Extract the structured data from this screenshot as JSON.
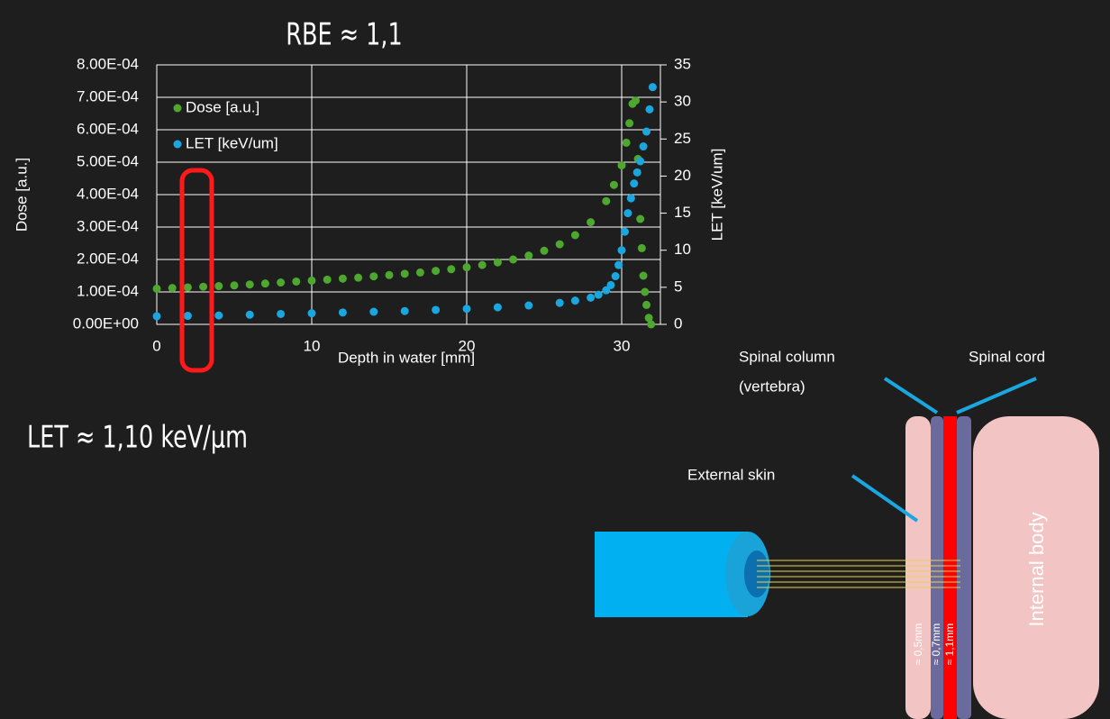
{
  "chart_data": {
    "type": "scatter",
    "title": "RBE ≈ 1,1",
    "xlabel": "Depth in water [mm]",
    "ylabel": "Dose [a.u.]",
    "y2label": "LET [keV/um]",
    "xlim": [
      0,
      32.5
    ],
    "xticks": [
      0,
      10,
      20,
      30
    ],
    "ylim": [
      0,
      0.0008
    ],
    "yticks": [
      {
        "value": 0,
        "label": "0.00E+00"
      },
      {
        "value": 0.0001,
        "label": "1.00E-04"
      },
      {
        "value": 0.0002,
        "label": "2.00E-04"
      },
      {
        "value": 0.0003,
        "label": "3.00E-04"
      },
      {
        "value": 0.0004,
        "label": "4.00E-04"
      },
      {
        "value": 0.0005,
        "label": "5.00E-04"
      },
      {
        "value": 0.0006,
        "label": "6.00E-04"
      },
      {
        "value": 0.0007,
        "label": "7.00E-04"
      },
      {
        "value": 0.0008,
        "label": "8.00E-04"
      }
    ],
    "y2lim": [
      0,
      35
    ],
    "y2ticks": [
      0,
      5,
      10,
      15,
      20,
      25,
      30,
      35
    ],
    "grid": true,
    "legend": "upper left",
    "series": [
      {
        "name": "Dose [a.u.]",
        "color": "#4ea72e",
        "x": [
          0,
          1,
          2,
          3,
          4,
          5,
          6,
          7,
          8,
          9,
          10,
          11,
          12,
          13,
          14,
          15,
          16,
          17,
          18,
          19,
          20,
          21,
          22,
          23,
          24,
          25,
          26,
          27,
          28,
          29,
          29.5,
          30,
          30.3,
          30.5,
          30.7,
          30.9,
          31.05,
          31.2,
          31.3,
          31.4,
          31.5,
          31.6,
          31.75,
          31.9
        ],
        "values": [
          0.00011,
          0.000112,
          0.000114,
          0.000116,
          0.000118,
          0.00012,
          0.000123,
          0.000126,
          0.000129,
          0.000132,
          0.000135,
          0.000138,
          0.000141,
          0.000144,
          0.000148,
          0.000152,
          0.000156,
          0.00016,
          0.000165,
          0.00017,
          0.000176,
          0.000183,
          0.000191,
          0.0002,
          0.000212,
          0.000227,
          0.000247,
          0.000275,
          0.000315,
          0.00038,
          0.00043,
          0.00049,
          0.00056,
          0.00062,
          0.00068,
          0.00069,
          0.00051,
          0.000325,
          0.000235,
          0.00015,
          0.0001,
          6e-05,
          2e-05,
          0
        ]
      },
      {
        "name": "LET [keV/um]",
        "color": "#1aa7e0",
        "axis": "y2",
        "x": [
          0,
          2,
          4,
          6,
          8,
          10,
          12,
          14,
          16,
          18,
          20,
          22,
          24,
          26,
          27,
          28,
          28.5,
          29,
          29.3,
          29.6,
          29.8,
          30,
          30.2,
          30.4,
          30.6,
          30.8,
          31,
          31.2,
          31.4,
          31.6,
          31.8,
          32
        ],
        "values": [
          1.1,
          1.15,
          1.2,
          1.3,
          1.4,
          1.5,
          1.6,
          1.7,
          1.8,
          1.95,
          2.1,
          2.3,
          2.55,
          2.9,
          3.2,
          3.6,
          4.0,
          4.6,
          5.3,
          6.5,
          8,
          10,
          12.5,
          15,
          17,
          19,
          20.5,
          22,
          24,
          26,
          29,
          32
        ]
      }
    ]
  },
  "annotation": "LET ≈ 1,10 keV/μm",
  "diagram": {
    "spinal_column": [
      "Spinal column",
      "(vertebra)"
    ],
    "spinal_cord": "Spinal cord",
    "external_skin": "External skin",
    "internal_body": "Internal body",
    "thickness": [
      "≈ 0,5mm",
      "≈ 0,7mm",
      "≈ 1,1mm"
    ]
  }
}
